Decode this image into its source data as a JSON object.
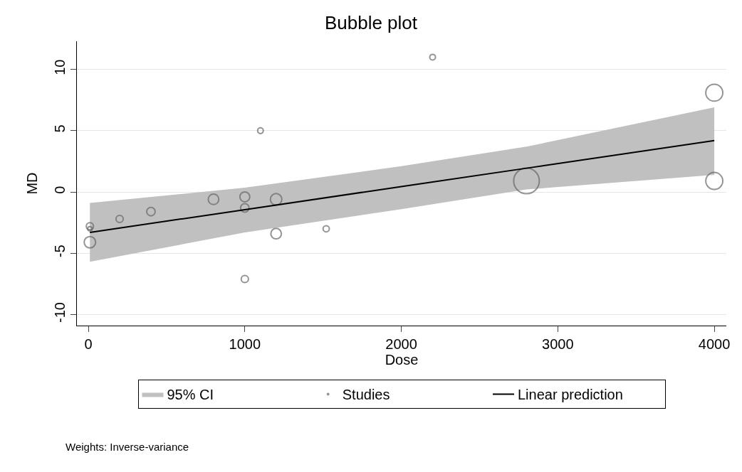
{
  "chart_data": {
    "type": "bubble",
    "title": "Bubble plot",
    "xlabel": "Dose",
    "ylabel": "MD",
    "xlim": [
      -73,
      4077
    ],
    "xticks": [
      0,
      1000,
      2000,
      3000,
      4000
    ],
    "ylim": [
      -10.9,
      12.3
    ],
    "yticks": [
      -10,
      -5,
      0,
      5,
      10
    ],
    "grid": "y",
    "legend": "bottom",
    "series": [
      {
        "name": "95% CI",
        "type": "area",
        "color": "#c0c0c0"
      },
      {
        "name": "Studies",
        "color": "#666666",
        "marker": "circle",
        "x": [
          10,
          10,
          10,
          200,
          400,
          800,
          1000,
          1000,
          1000,
          1100,
          1200,
          1200,
          1520,
          2200,
          2800,
          4000,
          4000
        ],
        "values": [
          -2.8,
          -3.0,
          -4.1,
          -2.2,
          -1.6,
          -0.6,
          -0.4,
          -1.3,
          -7.1,
          5.0,
          -0.6,
          -3.4,
          -3.0,
          11.0,
          0.9,
          8.1,
          0.9
        ],
        "sizes": [
          0.08,
          0.03,
          0.2,
          0.08,
          0.11,
          0.17,
          0.15,
          0.11,
          0.08,
          0.05,
          0.2,
          0.17,
          0.06,
          0.05,
          1,
          0.44,
          0.44
        ]
      },
      {
        "name": "Linear prediction",
        "type": "line",
        "color": "#000000",
        "x": [
          10,
          1000,
          2000,
          2800,
          4000
        ],
        "values": [
          -3.3,
          -1.44,
          0.44,
          1.94,
          4.2
        ],
        "lower": [
          -5.7,
          -3.3,
          -1.4,
          0.2,
          1.4
        ],
        "upper": [
          -0.9,
          0.35,
          2.1,
          3.7,
          6.9
        ]
      }
    ],
    "annotations": [
      "Weights: Inverse-variance"
    ]
  }
}
